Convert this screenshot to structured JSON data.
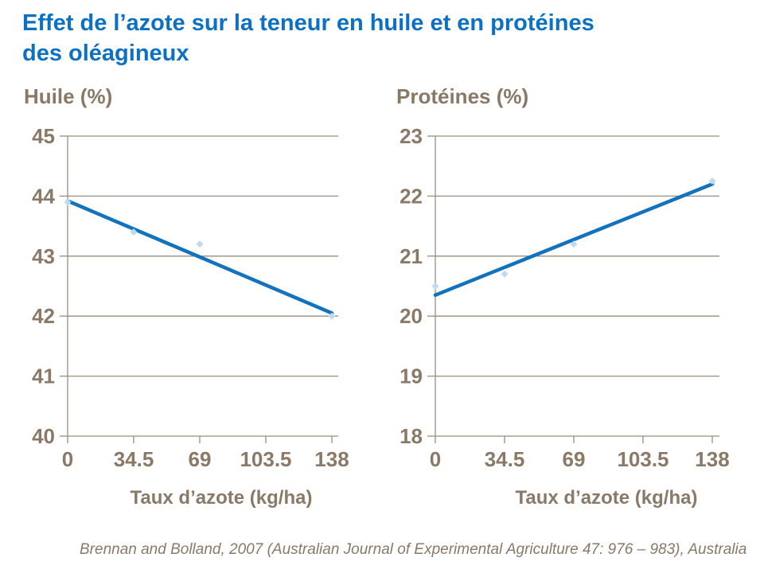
{
  "slide_title": {
    "line1": "Effet de l’azote sur la teneur en huile et en protéines",
    "line2": "des oléagineux"
  },
  "source_note": "Brennan and Bolland, 2007 (Australian Journal of Experimental Agriculture 47: 976 – 983), Australia",
  "colors": {
    "title_blue": "#0C70C4",
    "axis_text_brown": "#8A7967",
    "gridline_brown": "#9B8D7D",
    "trend_line_blue": "#1272BE",
    "marker_light_blue": "#BDDAF2",
    "background": "#FFFFFF"
  },
  "chart_data": [
    {
      "type": "scatter",
      "title": "Huile (%)",
      "xlabel": "Taux d’azote (kg/ha)",
      "ylabel": "",
      "x": [
        0,
        34.5,
        69,
        138
      ],
      "y": [
        43.9,
        43.4,
        43.2,
        42.0
      ],
      "trend_line": {
        "x": [
          0,
          138
        ],
        "y": [
          43.92,
          42.05
        ]
      },
      "xlim": [
        0,
        138
      ],
      "ylim": [
        40,
        45
      ],
      "xticks": [
        0,
        34.5,
        69,
        103.5,
        138
      ],
      "xtick_labels": [
        "0",
        "34.5",
        "69",
        "103.5",
        "138"
      ],
      "yticks": [
        40,
        41,
        42,
        43,
        44,
        45
      ],
      "ytick_labels": [
        "40",
        "41",
        "42",
        "43",
        "44",
        "45"
      ],
      "grid": "horizontal",
      "legend": "none",
      "marker": "diamond"
    },
    {
      "type": "scatter",
      "title": "Protéines (%)",
      "xlabel": "Taux d’azote (kg/ha)",
      "ylabel": "",
      "x": [
        0,
        34.5,
        69,
        138
      ],
      "y": [
        20.5,
        20.7,
        21.2,
        22.25
      ],
      "trend_line": {
        "x": [
          0,
          138
        ],
        "y": [
          20.35,
          22.2
        ]
      },
      "xlim": [
        0,
        138
      ],
      "ylim": [
        18,
        23
      ],
      "xticks": [
        0,
        34.5,
        69,
        103.5,
        138
      ],
      "xtick_labels": [
        "0",
        "34.5",
        "69",
        "103.5",
        "138"
      ],
      "yticks": [
        18,
        19,
        20,
        21,
        22,
        23
      ],
      "ytick_labels": [
        "18",
        "19",
        "20",
        "21",
        "22",
        "23"
      ],
      "grid": "horizontal",
      "legend": "none",
      "marker": "diamond"
    }
  ]
}
